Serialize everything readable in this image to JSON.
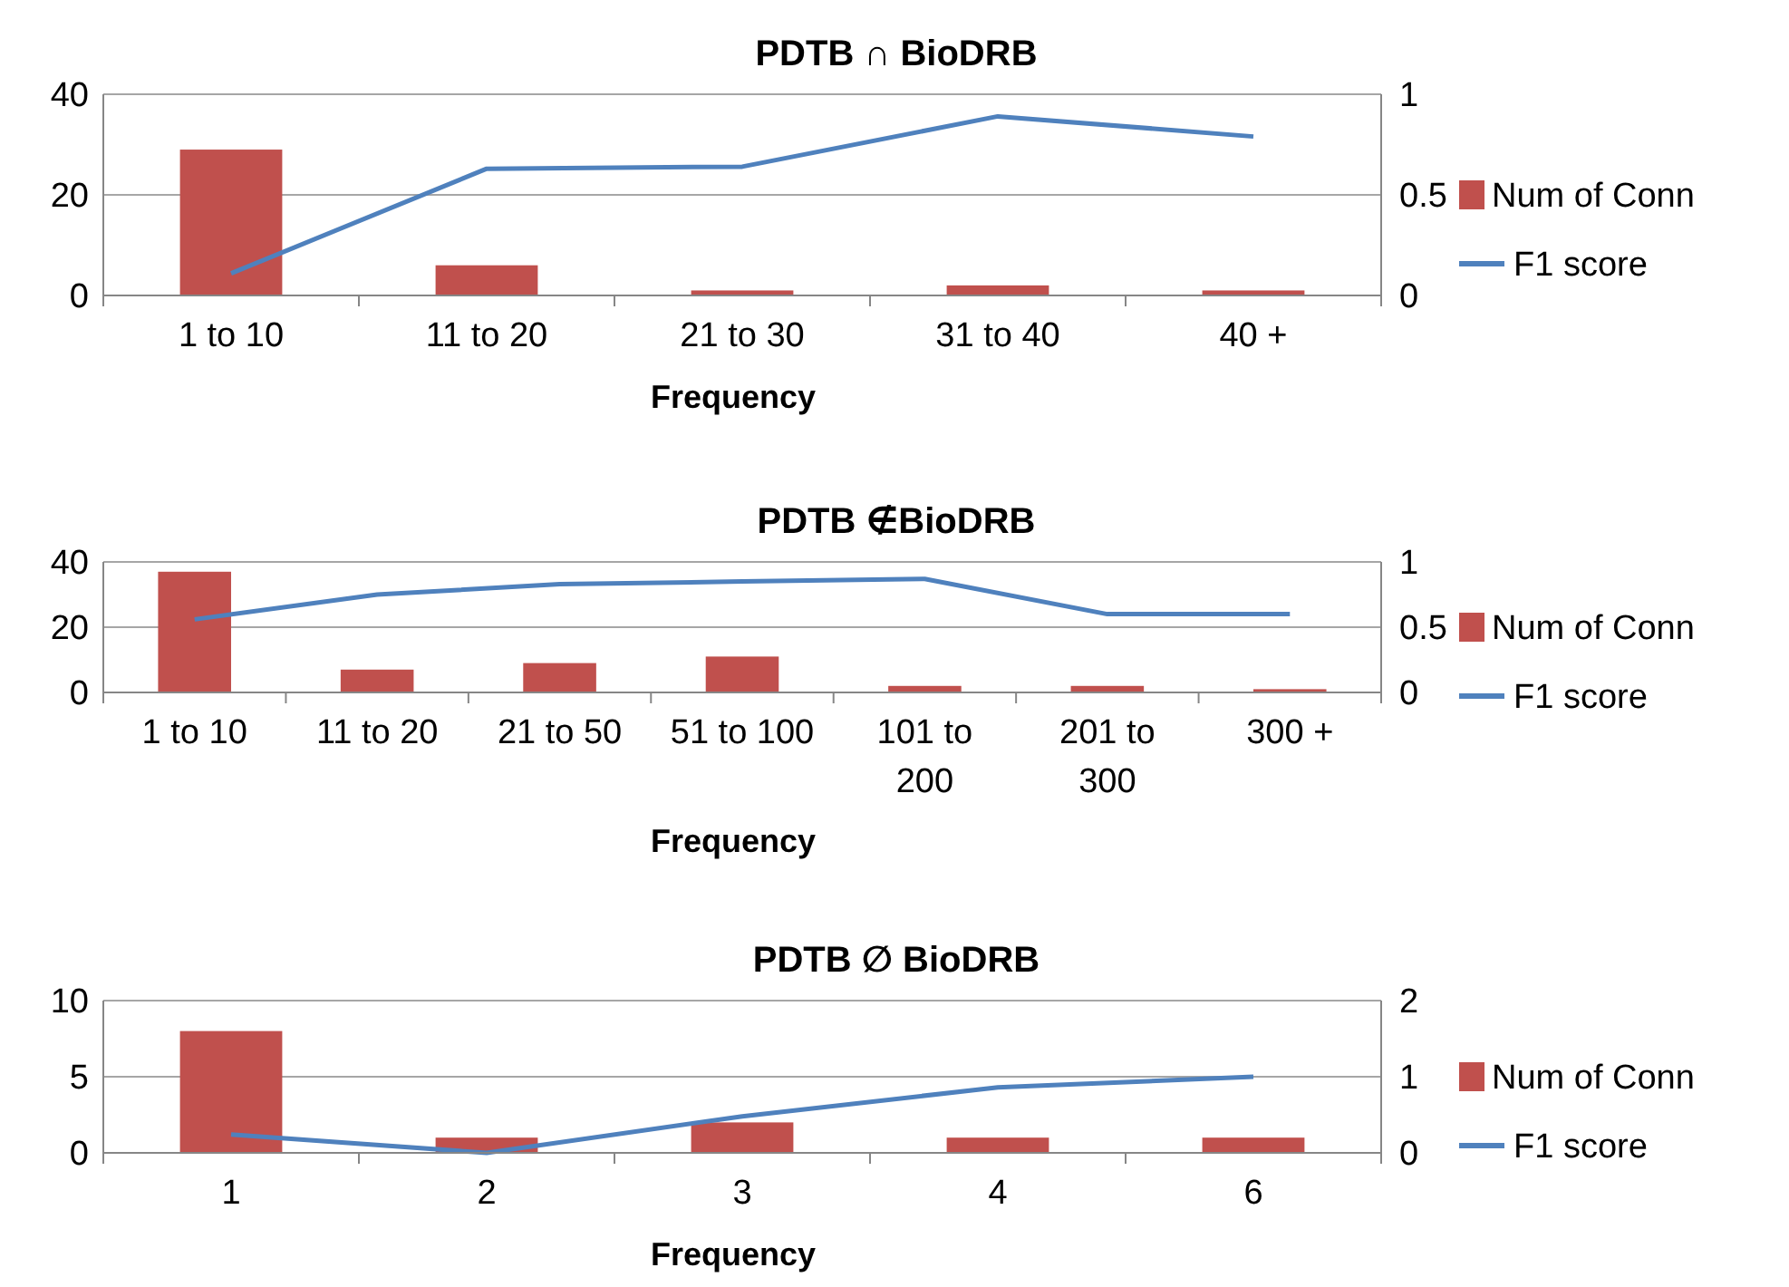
{
  "chart_data": [
    {
      "type": "bar",
      "title": "PDTB ∩ BioDRB",
      "xlabel": "Frequency",
      "categories": [
        "1 to 10",
        "11 to 20",
        "21 to 30",
        "31 to 40",
        "40 +"
      ],
      "series": [
        {
          "name": "Num of Conn",
          "color": "#c0504d",
          "values": [
            29,
            6,
            1,
            2,
            1
          ]
        },
        {
          "name": "F1 score",
          "type": "line",
          "axis": "y2",
          "color": "#4f81bd",
          "values": [
            0.11,
            0.63,
            0.64,
            0.89,
            0.79
          ]
        }
      ],
      "ylim": [
        0,
        40
      ],
      "yticks": [
        0,
        20,
        40
      ],
      "y2lim": [
        0,
        1
      ],
      "y2ticks": [
        0,
        0.5,
        1
      ],
      "grid": "y",
      "legend": "right",
      "marker": "none"
    },
    {
      "type": "bar",
      "title": "PDTB ∉BioDRB",
      "xlabel": "Frequency",
      "categories": [
        "1 to 10",
        "11 to 20",
        "21 to 50",
        "51 to 100",
        "101 to 200",
        "201 to 300",
        "300 +"
      ],
      "series": [
        {
          "name": "Num of Conn",
          "color": "#c0504d",
          "values": [
            37,
            7,
            9,
            11,
            2,
            2,
            1
          ]
        },
        {
          "name": "F1 score",
          "type": "line",
          "axis": "y2",
          "color": "#4f81bd",
          "values": [
            0.56,
            0.75,
            0.83,
            0.85,
            0.87,
            0.6,
            0.6
          ]
        }
      ],
      "ylim": [
        0,
        40
      ],
      "yticks": [
        0,
        20,
        40
      ],
      "y2lim": [
        0,
        1
      ],
      "y2ticks": [
        0,
        0.5,
        1
      ],
      "grid": "y",
      "legend": "right",
      "marker": "none"
    },
    {
      "type": "bar",
      "title": "PDTB ∅ BioDRB",
      "xlabel": "Frequency",
      "categories": [
        "1",
        "2",
        "3",
        "4",
        "6"
      ],
      "series": [
        {
          "name": "Num of Conn",
          "color": "#c0504d",
          "values": [
            8,
            1,
            2,
            1,
            1
          ]
        },
        {
          "name": "F1 score",
          "type": "line",
          "axis": "y2",
          "color": "#4f81bd",
          "values": [
            0.24,
            0,
            0.48,
            0.86,
            1
          ]
        }
      ],
      "ylim": [
        0,
        10
      ],
      "yticks": [
        0,
        5,
        10
      ],
      "y2lim": [
        0,
        2
      ],
      "y2ticks": [
        0,
        1,
        2
      ],
      "grid": "y",
      "legend": "right",
      "marker": "none"
    }
  ]
}
